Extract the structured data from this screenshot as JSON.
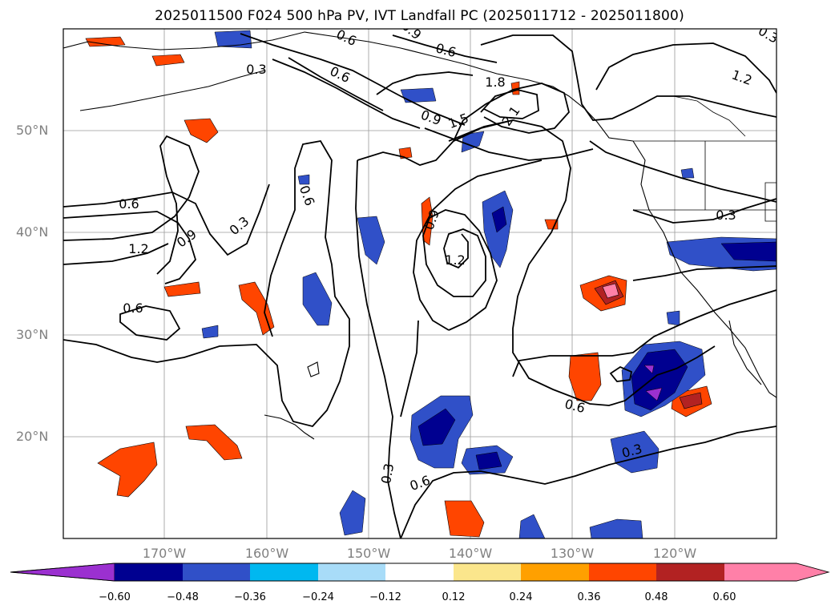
{
  "title": "2025011500 F024 500 hPa PV, IVT Landfall PC (2025011712 - 2025011800)",
  "map": {
    "lat_labels": [
      "50°N",
      "40°N",
      "30°N",
      "20°N"
    ],
    "lon_labels": [
      "170°W",
      "160°W",
      "150°W",
      "140°W",
      "130°W",
      "120°W"
    ],
    "contour_labels": [
      "0.6",
      "0.3",
      "0.9",
      "1.2",
      "1.5",
      "1.8",
      "2.1",
      "0.6",
      "0.9",
      "0.6",
      "0.6",
      "0.3",
      "1.2",
      "0.9",
      "0.6",
      "0.3",
      "0.6",
      "0.3",
      "0.6",
      "0.3",
      "1.2",
      "0.9",
      "0.3",
      "0.6"
    ]
  },
  "colorbar": {
    "ticks": [
      "−0.60",
      "−0.48",
      "−0.36",
      "−0.24",
      "−0.12",
      "0.12",
      "0.24",
      "0.36",
      "0.48",
      "0.60"
    ],
    "colors": [
      "#9b30d0",
      "#000090",
      "#3050c8",
      "#00b8f0",
      "#a8dcf8",
      "#ffffff",
      "#fbe68c",
      "#ffa000",
      "#ff4500",
      "#b22222",
      "#ff80a8",
      "#ff80a8"
    ]
  },
  "fill_colors": {
    "neg_dark": "#000090",
    "neg_mid": "#3050c8",
    "neg_light": "#00b8f0",
    "pos_light": "#ffa000",
    "pos_mid": "#ff4500",
    "pos_dark": "#b22222",
    "pos_max": "#ff80a8"
  }
}
